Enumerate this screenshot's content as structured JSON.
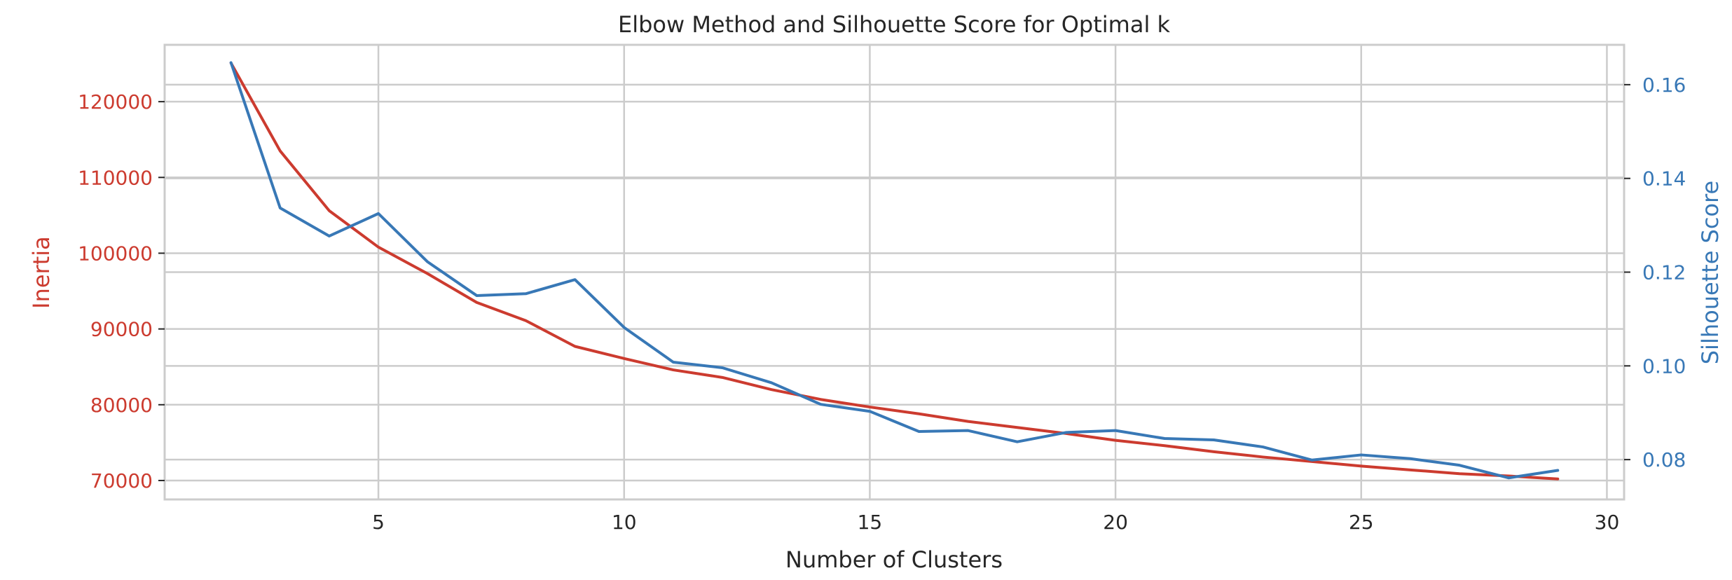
{
  "chart_data": {
    "type": "line",
    "title": "Elbow Method and Silhouette Score for Optimal k",
    "xlabel": "Number of Clusters",
    "x": [
      2,
      3,
      4,
      5,
      6,
      7,
      8,
      9,
      10,
      11,
      12,
      13,
      14,
      15,
      16,
      17,
      18,
      19,
      20,
      21,
      22,
      23,
      24,
      25,
      26,
      27,
      28,
      29
    ],
    "xlim": [
      0.65,
      30.35
    ],
    "xticks": [
      5,
      10,
      15,
      20,
      25,
      30
    ],
    "xtick_labels": [
      "5",
      "10",
      "15",
      "20",
      "25",
      "30"
    ],
    "grid": true,
    "axes": {
      "left": {
        "label": "Inertia",
        "color": "#cc3b2f",
        "ylim": [
          67500,
          127500
        ],
        "ticks": [
          70000,
          80000,
          90000,
          100000,
          110000,
          120000
        ],
        "tick_labels": [
          "70000",
          "80000",
          "90000",
          "100000",
          "110000",
          "120000"
        ]
      },
      "right": {
        "label": "Silhouette Score",
        "color": "#3878b6",
        "ylim": [
          0.0715,
          0.1685
        ],
        "ticks": [
          0.08,
          0.1,
          0.12,
          0.14,
          0.16
        ],
        "tick_labels": [
          "0.08",
          "0.10",
          "0.12",
          "0.14",
          "0.16"
        ]
      }
    },
    "series": [
      {
        "axis": "left",
        "color": "#cc3b2f",
        "values": [
          125100,
          113500,
          105600,
          100800,
          97300,
          93500,
          91100,
          87700,
          86100,
          84600,
          83600,
          82000,
          80700,
          79700,
          78800,
          77800,
          77000,
          76200,
          75300,
          74600,
          73800,
          73100,
          72500,
          71900,
          71400,
          70900,
          70600,
          70200
        ]
      },
      {
        "axis": "right",
        "color": "#3878b6",
        "values": [
          0.1647,
          0.1337,
          0.1277,
          0.1325,
          0.1222,
          0.115,
          0.1154,
          0.1184,
          0.1082,
          0.1008,
          0.0996,
          0.0964,
          0.0918,
          0.0903,
          0.086,
          0.0862,
          0.0838,
          0.0858,
          0.0862,
          0.0845,
          0.0842,
          0.0827,
          0.0799,
          0.081,
          0.0802,
          0.0788,
          0.0761,
          0.0777
        ]
      }
    ]
  }
}
